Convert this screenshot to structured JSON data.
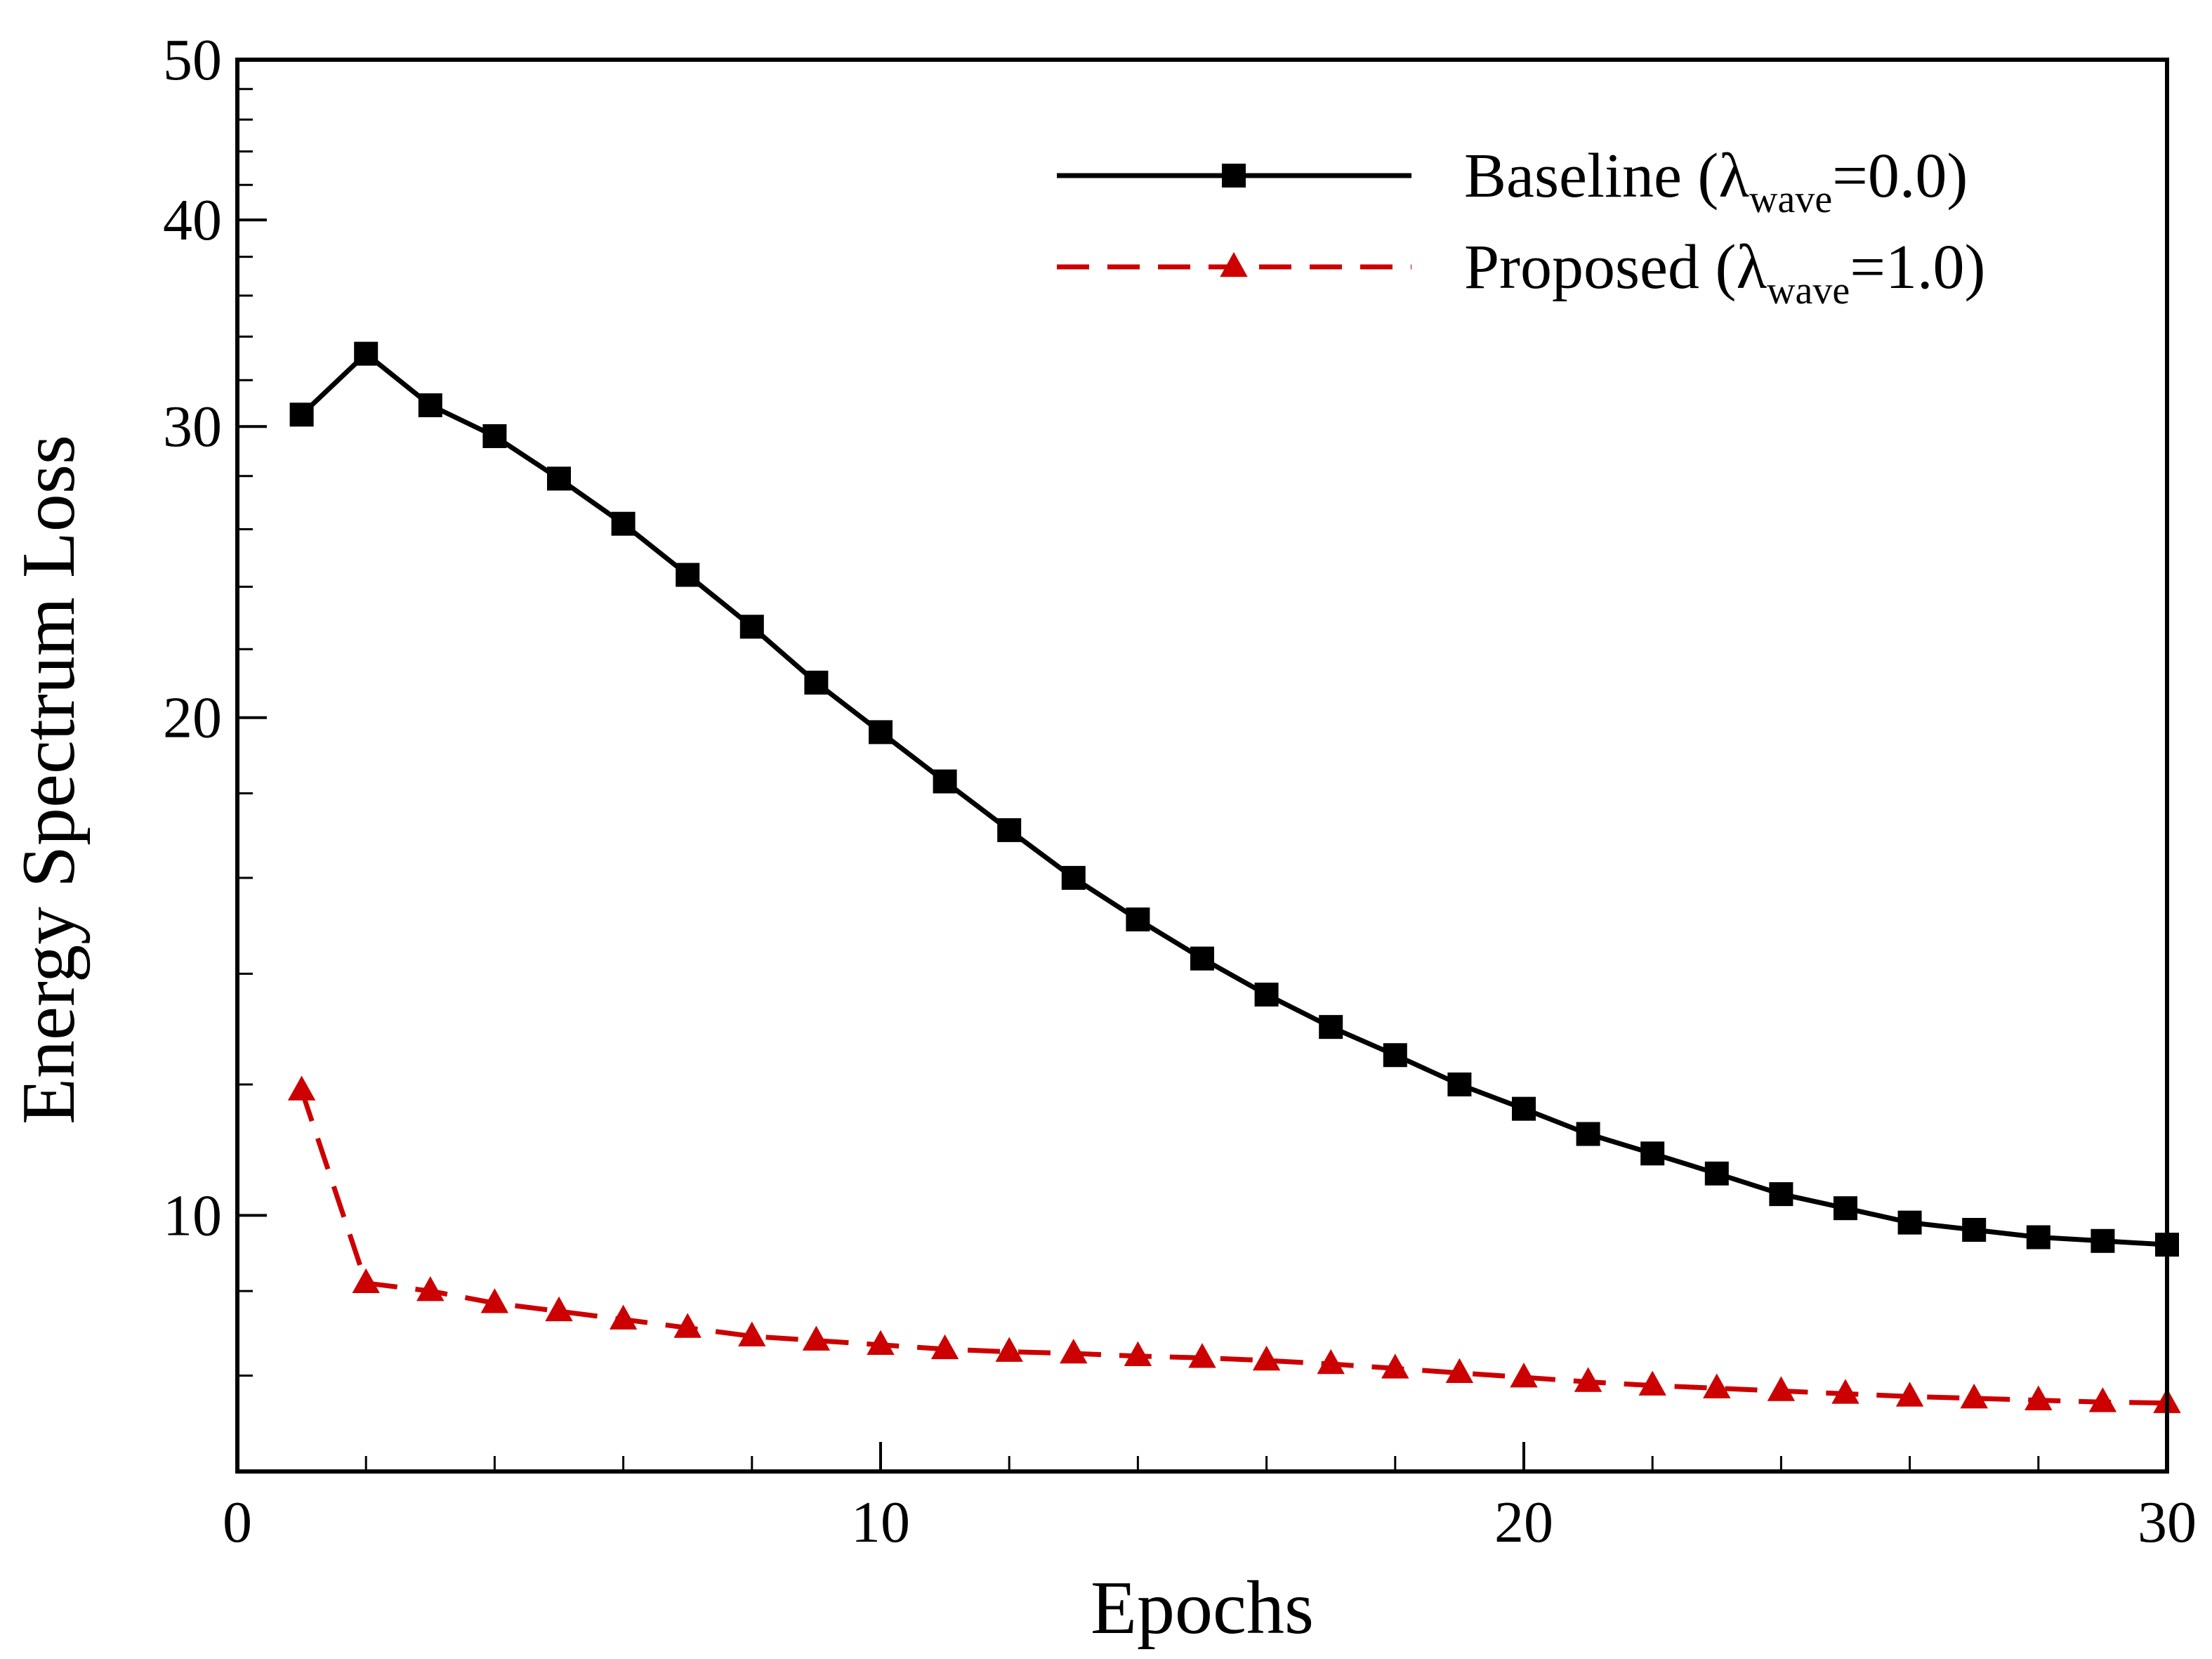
{
  "chart_data": {
    "type": "line",
    "title": "",
    "xlabel": "Epochs",
    "ylabel": "Energy Spectrum Loss",
    "xlim": [
      0,
      30
    ],
    "ylim": [
      7,
      50
    ],
    "yscale": "log",
    "grid": false,
    "legend_position": "top-right",
    "x_ticks": [
      {
        "value": 0,
        "label": "0"
      },
      {
        "value": 10,
        "label": "10"
      },
      {
        "value": 20,
        "label": "20"
      },
      {
        "value": 30,
        "label": "30"
      }
    ],
    "y_ticks": [
      {
        "value": 10,
        "label": "10"
      },
      {
        "value": 20,
        "label": "20"
      },
      {
        "value": 30,
        "label": "30"
      },
      {
        "value": 40,
        "label": "40"
      },
      {
        "value": 50,
        "label": "50"
      }
    ],
    "x": [
      1,
      2,
      3,
      4,
      5,
      6,
      7,
      8,
      9,
      10,
      11,
      12,
      13,
      14,
      15,
      16,
      17,
      18,
      19,
      20,
      21,
      22,
      23,
      24,
      25,
      26,
      27,
      28,
      29,
      30
    ],
    "series": [
      {
        "name": "Baseline (λwave=0.0)",
        "label_main": "Baseline (λ",
        "label_sub": "wave",
        "label_tail": "=0.0)",
        "color": "#000000",
        "marker": "square",
        "line_style": "solid",
        "values": [
          30.5,
          33.2,
          30.9,
          29.6,
          27.9,
          26.2,
          24.4,
          22.7,
          21.0,
          19.6,
          18.3,
          17.1,
          16.0,
          15.1,
          14.3,
          13.6,
          13.0,
          12.5,
          12.0,
          11.6,
          11.2,
          10.9,
          10.6,
          10.3,
          10.1,
          9.9,
          9.8,
          9.7,
          9.65,
          9.6
        ]
      },
      {
        "name": "Proposed (λwave=1.0)",
        "label_main": "Proposed (λ",
        "label_sub": "wave",
        "label_tail": "=1.0)",
        "color": "#cc0000",
        "marker": "triangle",
        "line_style": "dashed",
        "values": [
          11.9,
          9.1,
          9.0,
          8.85,
          8.75,
          8.65,
          8.55,
          8.45,
          8.4,
          8.35,
          8.3,
          8.27,
          8.25,
          8.22,
          8.2,
          8.17,
          8.13,
          8.08,
          8.03,
          7.98,
          7.93,
          7.89,
          7.86,
          7.83,
          7.8,
          7.77,
          7.75,
          7.73,
          7.71,
          7.7
        ]
      }
    ]
  }
}
